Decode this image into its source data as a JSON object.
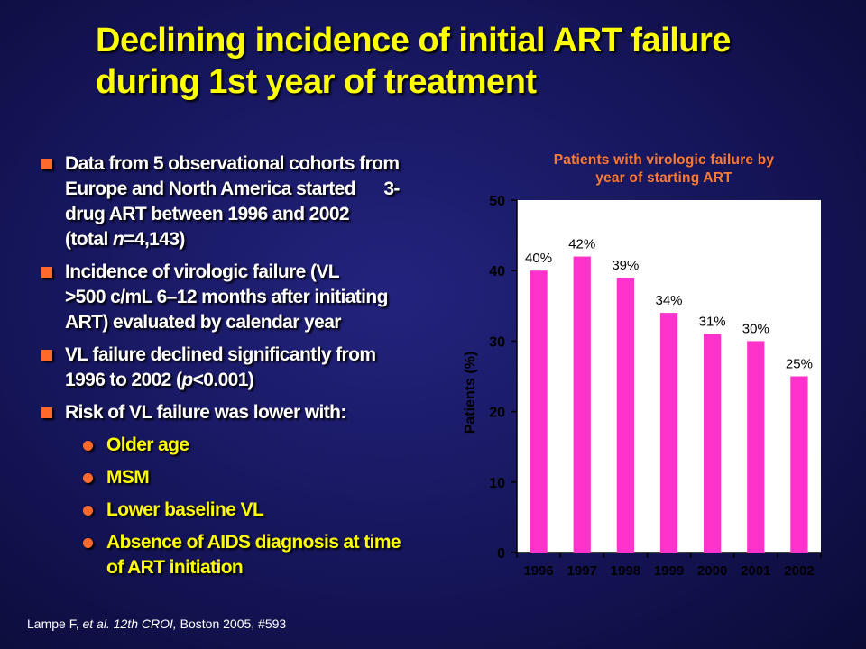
{
  "slide": {
    "title_line1": "Declining incidence of initial ART failure",
    "title_line2": "during 1st year of treatment"
  },
  "bullets": [
    {
      "line1": "Data from 5 observational cohorts from",
      "line2": "Europe and North America started      3-",
      "line3": "drug ART between 1996 and 2002",
      "line4_pre": "(total ",
      "line4_em": "n",
      "line4_post": "=4,143)"
    },
    {
      "line1": "Incidence of virologic failure (VL",
      "line2": ">500 c/mL 6–12 months after initiating",
      "line3": "ART) evaluated by calendar year"
    },
    {
      "line1": "VL failure declined significantly from",
      "line2_pre": "1996 to 2002 (",
      "line2_em": "p",
      "line2_post": "<0.001)"
    },
    {
      "line1": "Risk of VL failure was lower with:"
    }
  ],
  "sub_bullets": [
    {
      "line1": "Older age"
    },
    {
      "line1": "MSM"
    },
    {
      "line1": "Lower baseline VL"
    },
    {
      "line1": "Absence of AIDS diagnosis at time",
      "line2": "of ART initiation"
    }
  ],
  "citation": {
    "authors": "Lampe F, ",
    "etal": "et al. 12th CROI,",
    "rest": " Boston 2005, #593"
  },
  "colors": {
    "title": "#ffff00",
    "bar": "#ff33cc",
    "chart_title": "#ff7a2e",
    "plot_bg": "#ffffff",
    "bullet_marker": "#ff6a2a"
  },
  "chart_data": {
    "type": "bar",
    "title": "Patients with virologic failure by year of starting ART",
    "title_line1": "Patients with virologic failure by",
    "title_line2": "year of starting ART",
    "categories": [
      "1996",
      "1997",
      "1998",
      "1999",
      "2000",
      "2001",
      "2002"
    ],
    "values": [
      40,
      42,
      39,
      34,
      31,
      30,
      25
    ],
    "data_labels": [
      "40%",
      "42%",
      "39%",
      "34%",
      "31%",
      "30%",
      "25%"
    ],
    "xlabel": "",
    "ylabel": "Patients (%)",
    "ylim": [
      0,
      50
    ],
    "yticks": [
      0,
      10,
      20,
      30,
      40,
      50
    ],
    "grid": false,
    "legend": "none"
  }
}
